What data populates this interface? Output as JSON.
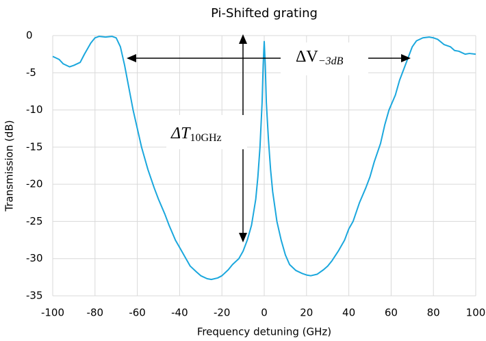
{
  "chart_data": {
    "type": "line",
    "title": "Pi-Shifted grating",
    "xlabel": "Frequency detuning (GHz)",
    "ylabel": "Transmission (dB)",
    "xlim": [
      -100,
      100
    ],
    "xticks": [
      -100,
      -80,
      -60,
      -40,
      -20,
      0,
      20,
      40,
      60,
      80,
      100
    ],
    "ylim": [
      -35,
      0
    ],
    "yticks": [
      0,
      -5,
      -10,
      -15,
      -20,
      -25,
      -30,
      -35
    ],
    "grid": true,
    "series": [
      {
        "color": "#1aa7dd",
        "x": [
          -100,
          -97,
          -95,
          -92,
          -90,
          -87,
          -85,
          -82,
          -80,
          -78,
          -75,
          -72,
          -70,
          -68,
          -66,
          -64,
          -62,
          -60,
          -58,
          -55,
          -52,
          -50,
          -47,
          -45,
          -42,
          -40,
          -37,
          -35,
          -32,
          -30,
          -27,
          -25,
          -22,
          -20,
          -17,
          -15,
          -12,
          -10,
          -8,
          -6,
          -4,
          -3,
          -2,
          -1,
          -0.5,
          0,
          0.5,
          1,
          2,
          3,
          4,
          6,
          8,
          10,
          12,
          15,
          18,
          20,
          22,
          25,
          28,
          30,
          32,
          35,
          38,
          40,
          42,
          45,
          48,
          50,
          52,
          55,
          57,
          59,
          62,
          64,
          66,
          68,
          70,
          72,
          75,
          78,
          80,
          82,
          85,
          88,
          90,
          92,
          95,
          97,
          100
        ],
        "values": [
          -2.8,
          -3.2,
          -3.8,
          -4.2,
          -4.0,
          -3.6,
          -2.5,
          -1.0,
          -0.3,
          -0.1,
          -0.2,
          -0.1,
          -0.3,
          -1.5,
          -4,
          -7,
          -10,
          -12.5,
          -15,
          -18,
          -20.5,
          -22,
          -24,
          -25.5,
          -27.5,
          -28.5,
          -30,
          -31,
          -31.8,
          -32.3,
          -32.7,
          -32.8,
          -32.6,
          -32.3,
          -31.5,
          -30.8,
          -30,
          -29,
          -27.5,
          -25.5,
          -22,
          -19,
          -15,
          -9,
          -4,
          -0.8,
          -4,
          -9,
          -14,
          -18,
          -21,
          -25,
          -27.5,
          -29.5,
          -30.8,
          -31.6,
          -32,
          -32.2,
          -32.3,
          -32.1,
          -31.5,
          -31,
          -30.3,
          -29,
          -27.5,
          -26,
          -25,
          -22.5,
          -20.5,
          -19,
          -17,
          -14.5,
          -12,
          -10,
          -8,
          -6,
          -4.5,
          -3,
          -1.5,
          -0.7,
          -0.3,
          -0.2,
          -0.3,
          -0.5,
          -1.2,
          -1.5,
          -2.0,
          -2.1,
          -2.5,
          -2.4,
          -2.5
        ]
      }
    ],
    "annotations": [
      {
        "text": "ΔV",
        "sub": "−3dB"
      },
      {
        "text": "ΔT",
        "sub": "10GHz"
      }
    ]
  }
}
